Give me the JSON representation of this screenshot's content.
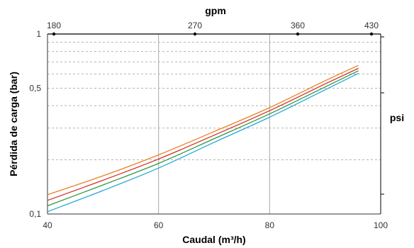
{
  "chart_data": {
    "type": "line",
    "title": "",
    "xlabel": "Caudal (m³/h)",
    "ylabel": "Pérdida de carga (bar)",
    "top_axis_label": "gpm",
    "right_axis_label": "psi",
    "x_range": [
      40,
      100
    ],
    "y_range": [
      0.1,
      1
    ],
    "y_scale": "log",
    "x_ticks": [
      "40",
      "60",
      "80",
      "100"
    ],
    "y_ticks": [
      "0,1",
      "0,5",
      "1"
    ],
    "top_ticks": [
      "180",
      "270",
      "360",
      "430"
    ],
    "grid": "vertical gridlines at 60 and 80; dotted horizontal gridlines",
    "legend": "none",
    "series": [
      {
        "color": "#e8821e",
        "x": [
          40,
          50,
          60,
          70,
          80,
          90,
          96
        ],
        "y": [
          0.128,
          0.163,
          0.213,
          0.287,
          0.39,
          0.55,
          0.67
        ]
      },
      {
        "color": "#d62d2d",
        "x": [
          40,
          50,
          60,
          70,
          80,
          90,
          96
        ],
        "y": [
          0.119,
          0.154,
          0.202,
          0.274,
          0.375,
          0.528,
          0.645
        ]
      },
      {
        "color": "#2e9a3e",
        "x": [
          40,
          50,
          60,
          70,
          80,
          90,
          96
        ],
        "y": [
          0.111,
          0.145,
          0.191,
          0.262,
          0.36,
          0.508,
          0.625
        ]
      },
      {
        "color": "#27a7d8",
        "x": [
          40,
          50,
          60,
          70,
          80,
          90,
          96
        ],
        "y": [
          0.103,
          0.135,
          0.18,
          0.25,
          0.345,
          0.49,
          0.605
        ]
      }
    ]
  }
}
